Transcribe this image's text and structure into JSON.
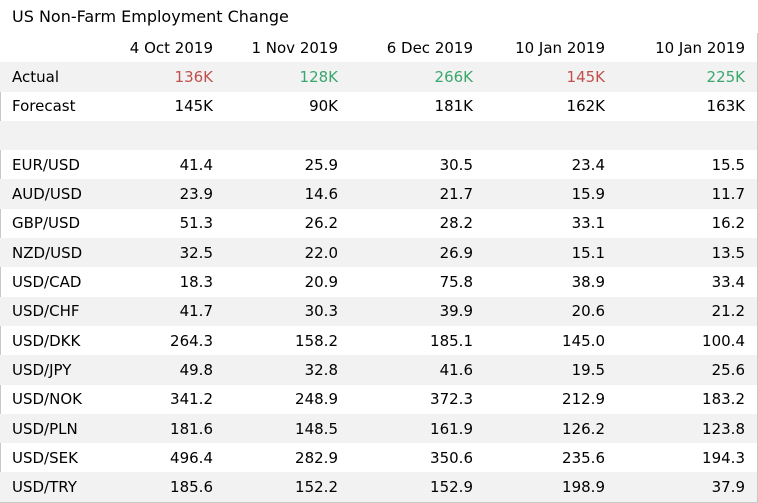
{
  "chart_data": {
    "type": "table",
    "title": "US Non-Farm Employment Change",
    "columns": [
      "4 Oct 2019",
      "1 Nov 2019",
      "6 Dec 2019",
      "10 Jan 2019",
      "10 Jan 2019"
    ],
    "actual": {
      "label": "Actual",
      "values": [
        "136K",
        "128K",
        "266K",
        "145K",
        "225K"
      ],
      "colors": [
        "#c0504d",
        "#3aa76d",
        "#3aa76d",
        "#c0504d",
        "#3aa76d"
      ]
    },
    "forecast": {
      "label": "Forecast",
      "values": [
        "145K",
        "90K",
        "181K",
        "162K",
        "163K"
      ]
    },
    "rows": [
      {
        "label": "EUR/USD",
        "values": [
          "41.4",
          "25.9",
          "30.5",
          "23.4",
          "15.5"
        ]
      },
      {
        "label": "AUD/USD",
        "values": [
          "23.9",
          "14.6",
          "21.7",
          "15.9",
          "11.7"
        ]
      },
      {
        "label": "GBP/USD",
        "values": [
          "51.3",
          "26.2",
          "28.2",
          "33.1",
          "16.2"
        ]
      },
      {
        "label": "NZD/USD",
        "values": [
          "32.5",
          "22.0",
          "26.9",
          "15.1",
          "13.5"
        ]
      },
      {
        "label": "USD/CAD",
        "values": [
          "18.3",
          "20.9",
          "75.8",
          "38.9",
          "33.4"
        ]
      },
      {
        "label": "USD/CHF",
        "values": [
          "41.7",
          "30.3",
          "39.9",
          "20.6",
          "21.2"
        ]
      },
      {
        "label": "USD/DKK",
        "values": [
          "264.3",
          "158.2",
          "185.1",
          "145.0",
          "100.4"
        ]
      },
      {
        "label": "USD/JPY",
        "values": [
          "49.8",
          "32.8",
          "41.6",
          "19.5",
          "25.6"
        ]
      },
      {
        "label": "USD/NOK",
        "values": [
          "341.2",
          "248.9",
          "372.3",
          "212.9",
          "183.2"
        ]
      },
      {
        "label": "USD/PLN",
        "values": [
          "181.6",
          "148.5",
          "161.9",
          "126.2",
          "123.8"
        ]
      },
      {
        "label": "USD/SEK",
        "values": [
          "496.4",
          "282.9",
          "350.6",
          "235.6",
          "194.3"
        ]
      },
      {
        "label": "USD/TRY",
        "values": [
          "185.6",
          "152.2",
          "152.9",
          "198.9",
          "37.9"
        ]
      }
    ]
  }
}
